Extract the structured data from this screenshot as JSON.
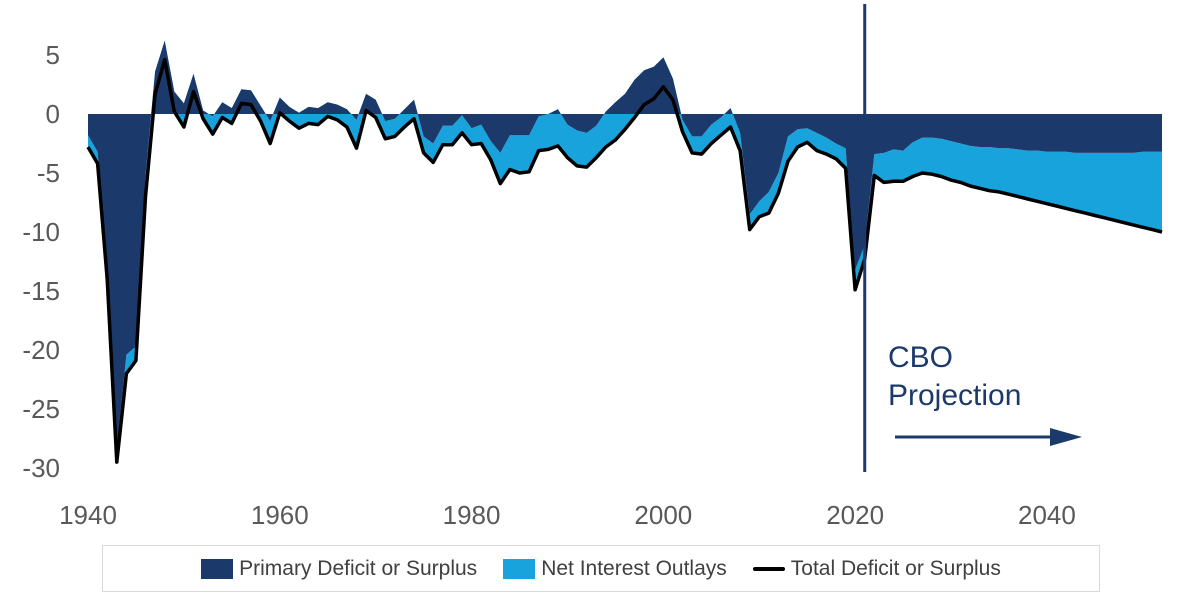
{
  "chart_data": {
    "type": "area",
    "title": "",
    "xlabel": "",
    "ylabel": "",
    "xlim": [
      1940,
      2052
    ],
    "ylim": [
      -30,
      7
    ],
    "x_ticks": [
      1940,
      1960,
      1980,
      2000,
      2020,
      2040
    ],
    "y_ticks": [
      5,
      0,
      -5,
      -10,
      -15,
      -20,
      -25,
      -30
    ],
    "colors": {
      "primary": "#1b3a6b",
      "interest": "#19a3dc",
      "total": "#000000",
      "annotation": "#1b3a6b"
    },
    "projection_start": 2021,
    "annotation": {
      "line1": "CBO",
      "line2": "Projection"
    },
    "legend": [
      {
        "key": "primary",
        "label": "Primary Deficit or Surplus"
      },
      {
        "key": "interest",
        "label": "Net Interest Outlays"
      },
      {
        "key": "total",
        "label": "Total Deficit or Surplus"
      }
    ],
    "x": [
      1940,
      1941,
      1942,
      1943,
      1944,
      1945,
      1946,
      1947,
      1948,
      1949,
      1950,
      1951,
      1952,
      1953,
      1954,
      1955,
      1956,
      1957,
      1958,
      1959,
      1960,
      1961,
      1962,
      1963,
      1964,
      1965,
      1966,
      1967,
      1968,
      1969,
      1970,
      1971,
      1972,
      1973,
      1974,
      1975,
      1976,
      1977,
      1978,
      1979,
      1980,
      1981,
      1982,
      1983,
      1984,
      1985,
      1986,
      1987,
      1988,
      1989,
      1990,
      1991,
      1992,
      1993,
      1994,
      1995,
      1996,
      1997,
      1998,
      1999,
      2000,
      2001,
      2002,
      2003,
      2004,
      2005,
      2006,
      2007,
      2008,
      2009,
      2010,
      2011,
      2012,
      2013,
      2014,
      2015,
      2016,
      2017,
      2018,
      2019,
      2020,
      2021,
      2022,
      2023,
      2024,
      2025,
      2026,
      2027,
      2028,
      2029,
      2030,
      2031,
      2032,
      2033,
      2034,
      2035,
      2036,
      2037,
      2038,
      2039,
      2040,
      2041,
      2042,
      2043,
      2044,
      2045,
      2046,
      2047,
      2048,
      2049,
      2050,
      2051,
      2052
    ],
    "series": [
      {
        "name": "Primary Deficit or Surplus",
        "values": [
          -1.8,
          -3.2,
          -13.1,
          -28.3,
          -20.4,
          -19.7,
          -5.2,
          3.6,
          6.2,
          1.9,
          0.9,
          3.4,
          0.3,
          -0.2,
          1.0,
          0.5,
          2.1,
          2.0,
          0.7,
          -0.6,
          1.4,
          0.6,
          0.1,
          0.6,
          0.5,
          1.0,
          0.8,
          0.4,
          -0.5,
          1.7,
          1.2,
          -0.6,
          -0.4,
          0.4,
          1.2,
          -1.9,
          -2.5,
          -1.0,
          -1.0,
          -0.1,
          -1.2,
          -0.9,
          -2.3,
          -3.3,
          -1.8,
          -1.8,
          -1.8,
          -0.2,
          0.0,
          0.4,
          -0.9,
          -1.4,
          -1.6,
          -1.0,
          0.2,
          1.0,
          1.7,
          2.9,
          3.7,
          4.0,
          4.8,
          3.0,
          -0.5,
          -1.9,
          -1.9,
          -0.9,
          -0.3,
          0.5,
          -1.6,
          -8.5,
          -7.4,
          -6.6,
          -5.0,
          -1.9,
          -1.3,
          -1.2,
          -1.6,
          -2.0,
          -2.5,
          -2.9,
          -13.2,
          -11.1,
          -3.4,
          -3.3,
          -3.0,
          -3.1,
          -2.4,
          -2.0,
          -2.0,
          -2.1,
          -2.3,
          -2.5,
          -2.7,
          -2.8,
          -2.8,
          -2.9,
          -2.9,
          -3.0,
          -3.1,
          -3.1,
          -3.2,
          -3.2,
          -3.2,
          -3.3,
          -3.3,
          -3.3,
          -3.3,
          -3.3,
          -3.3,
          -3.3,
          -3.2,
          -3.2,
          -3.2
        ]
      },
      {
        "name": "Total Deficit or Surplus",
        "values": [
          -2.8,
          -4.2,
          -14.0,
          -29.5,
          -22.0,
          -20.9,
          -7.0,
          1.7,
          4.6,
          0.2,
          -1.1,
          1.9,
          -0.4,
          -1.7,
          -0.3,
          -0.8,
          0.9,
          0.8,
          -0.6,
          -2.5,
          0.1,
          -0.6,
          -1.2,
          -0.8,
          -0.9,
          -0.2,
          -0.5,
          -1.1,
          -2.9,
          0.3,
          -0.3,
          -2.1,
          -1.9,
          -1.1,
          -0.4,
          -3.3,
          -4.1,
          -2.6,
          -2.6,
          -1.6,
          -2.6,
          -2.5,
          -3.9,
          -5.9,
          -4.7,
          -5.0,
          -4.9,
          -3.1,
          -3.0,
          -2.7,
          -3.7,
          -4.4,
          -4.5,
          -3.7,
          -2.8,
          -2.2,
          -1.3,
          -0.3,
          0.8,
          1.3,
          2.3,
          1.2,
          -1.5,
          -3.3,
          -3.4,
          -2.5,
          -1.8,
          -1.1,
          -3.1,
          -9.8,
          -8.7,
          -8.4,
          -6.7,
          -4.0,
          -2.8,
          -2.4,
          -3.1,
          -3.4,
          -3.8,
          -4.6,
          -14.9,
          -12.3,
          -5.2,
          -5.8,
          -5.7,
          -5.7,
          -5.3,
          -5.0,
          -5.1,
          -5.3,
          -5.6,
          -5.8,
          -6.1,
          -6.3,
          -6.5,
          -6.6,
          -6.8,
          -7.0,
          -7.2,
          -7.4,
          -7.6,
          -7.8,
          -8.0,
          -8.2,
          -8.4,
          -8.6,
          -8.8,
          -9.0,
          -9.2,
          -9.4,
          -9.6,
          -9.8,
          -10.0
        ]
      }
    ]
  }
}
